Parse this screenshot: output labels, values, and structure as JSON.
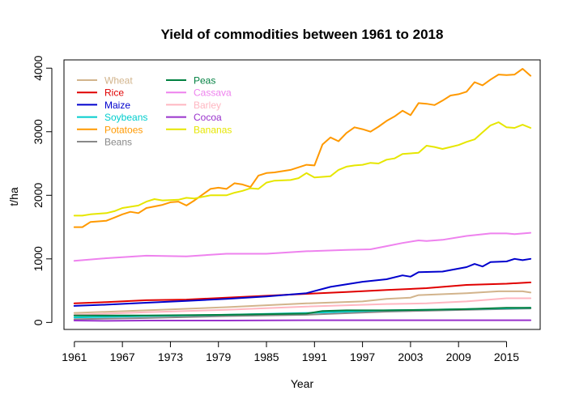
{
  "chart_data": {
    "type": "line",
    "title": "Yield of commodities between 1961 to 2018",
    "xlabel": "Year",
    "ylabel": "t/ha",
    "xlim": [
      1959.7,
      2019.2
    ],
    "ylim": [
      -110,
      4130
    ],
    "x_ticks": [
      1961,
      1967,
      1973,
      1979,
      1985,
      1991,
      1997,
      2003,
      2009,
      2015
    ],
    "y_ticks": [
      0,
      1000,
      2000,
      3000,
      4000
    ],
    "x_tick_labels": [
      "1961",
      "1967",
      "1973",
      "1979",
      "1985",
      "1991",
      "1997",
      "2003",
      "2009",
      "2015"
    ],
    "y_tick_labels": [
      "0",
      "1000",
      "2000",
      "3000",
      "4000"
    ],
    "legend_position": "top-left",
    "grid": false,
    "series": [
      {
        "name": "Wheat",
        "color": "#d2b48c",
        "points": [
          [
            1961,
            150
          ],
          [
            1970,
            190
          ],
          [
            1980,
            240
          ],
          [
            1990,
            300
          ],
          [
            1997,
            330
          ],
          [
            2000,
            370
          ],
          [
            2003,
            390
          ],
          [
            2004,
            430
          ],
          [
            2010,
            460
          ],
          [
            2014,
            490
          ],
          [
            2017,
            490
          ],
          [
            2018,
            470
          ]
        ]
      },
      {
        "name": "Rice",
        "color": "#e00000",
        "points": [
          [
            1961,
            300
          ],
          [
            1965,
            320
          ],
          [
            1970,
            350
          ],
          [
            1975,
            360
          ],
          [
            1980,
            390
          ],
          [
            1985,
            420
          ],
          [
            1990,
            450
          ],
          [
            1995,
            480
          ],
          [
            2000,
            510
          ],
          [
            2005,
            540
          ],
          [
            2010,
            590
          ],
          [
            2015,
            610
          ],
          [
            2018,
            630
          ]
        ]
      },
      {
        "name": "Maize",
        "color": "#0000cd",
        "points": [
          [
            1961,
            260
          ],
          [
            1965,
            280
          ],
          [
            1970,
            310
          ],
          [
            1975,
            340
          ],
          [
            1980,
            370
          ],
          [
            1985,
            410
          ],
          [
            1990,
            460
          ],
          [
            1993,
            560
          ],
          [
            1997,
            640
          ],
          [
            2000,
            680
          ],
          [
            2002,
            740
          ],
          [
            2003,
            720
          ],
          [
            2004,
            790
          ],
          [
            2007,
            800
          ],
          [
            2010,
            870
          ],
          [
            2011,
            920
          ],
          [
            2012,
            880
          ],
          [
            2013,
            950
          ],
          [
            2015,
            960
          ],
          [
            2016,
            1000
          ],
          [
            2017,
            980
          ],
          [
            2018,
            1000
          ]
        ]
      },
      {
        "name": "Soybeans",
        "color": "#00cdcd",
        "points": [
          [
            1961,
            80
          ],
          [
            1970,
            100
          ],
          [
            1980,
            120
          ],
          [
            1990,
            150
          ],
          [
            2000,
            190
          ],
          [
            2005,
            200
          ],
          [
            2010,
            210
          ],
          [
            2018,
            230
          ]
        ]
      },
      {
        "name": "Potatoes",
        "color": "#ff9900",
        "points": [
          [
            1961,
            1500
          ],
          [
            1962,
            1500
          ],
          [
            1963,
            1580
          ],
          [
            1965,
            1600
          ],
          [
            1966,
            1650
          ],
          [
            1967,
            1700
          ],
          [
            1968,
            1740
          ],
          [
            1969,
            1720
          ],
          [
            1970,
            1800
          ],
          [
            1972,
            1850
          ],
          [
            1973,
            1890
          ],
          [
            1974,
            1900
          ],
          [
            1975,
            1840
          ],
          [
            1976,
            1920
          ],
          [
            1978,
            2100
          ],
          [
            1979,
            2120
          ],
          [
            1980,
            2100
          ],
          [
            1981,
            2190
          ],
          [
            1982,
            2170
          ],
          [
            1983,
            2130
          ],
          [
            1984,
            2310
          ],
          [
            1985,
            2350
          ],
          [
            1986,
            2360
          ],
          [
            1988,
            2400
          ],
          [
            1990,
            2480
          ],
          [
            1991,
            2470
          ],
          [
            1992,
            2800
          ],
          [
            1993,
            2910
          ],
          [
            1994,
            2850
          ],
          [
            1995,
            2980
          ],
          [
            1996,
            3070
          ],
          [
            1997,
            3040
          ],
          [
            1998,
            3000
          ],
          [
            1999,
            3080
          ],
          [
            2000,
            3170
          ],
          [
            2001,
            3240
          ],
          [
            2002,
            3330
          ],
          [
            2003,
            3260
          ],
          [
            2004,
            3450
          ],
          [
            2005,
            3440
          ],
          [
            2006,
            3420
          ],
          [
            2007,
            3490
          ],
          [
            2008,
            3570
          ],
          [
            2009,
            3590
          ],
          [
            2010,
            3630
          ],
          [
            2011,
            3780
          ],
          [
            2012,
            3730
          ],
          [
            2013,
            3820
          ],
          [
            2014,
            3900
          ],
          [
            2015,
            3890
          ],
          [
            2016,
            3900
          ],
          [
            2017,
            3990
          ],
          [
            2018,
            3880
          ]
        ]
      },
      {
        "name": "Beans",
        "color": "#888888",
        "points": [
          [
            1961,
            50
          ],
          [
            1970,
            70
          ],
          [
            1980,
            100
          ],
          [
            1990,
            120
          ],
          [
            2000,
            170
          ],
          [
            2010,
            200
          ],
          [
            2018,
            220
          ]
        ]
      },
      {
        "name": "Peas",
        "color": "#008040",
        "points": [
          [
            1961,
            110
          ],
          [
            1970,
            110
          ],
          [
            1980,
            120
          ],
          [
            1990,
            140
          ],
          [
            1992,
            180
          ],
          [
            1995,
            190
          ],
          [
            2000,
            190
          ],
          [
            2005,
            200
          ],
          [
            2010,
            210
          ],
          [
            2015,
            230
          ],
          [
            2018,
            230
          ]
        ]
      },
      {
        "name": "Cassava",
        "color": "#ee82ee",
        "points": [
          [
            1961,
            970
          ],
          [
            1965,
            1010
          ],
          [
            1970,
            1050
          ],
          [
            1975,
            1040
          ],
          [
            1980,
            1080
          ],
          [
            1985,
            1080
          ],
          [
            1990,
            1120
          ],
          [
            1995,
            1140
          ],
          [
            1998,
            1150
          ],
          [
            2000,
            1200
          ],
          [
            2002,
            1250
          ],
          [
            2004,
            1290
          ],
          [
            2005,
            1280
          ],
          [
            2007,
            1300
          ],
          [
            2010,
            1360
          ],
          [
            2013,
            1400
          ],
          [
            2015,
            1400
          ],
          [
            2016,
            1390
          ],
          [
            2018,
            1410
          ]
        ]
      },
      {
        "name": "Barley",
        "color": "#ffb6c1",
        "points": [
          [
            1961,
            120
          ],
          [
            1970,
            160
          ],
          [
            1980,
            200
          ],
          [
            1990,
            250
          ],
          [
            2000,
            290
          ],
          [
            2005,
            300
          ],
          [
            2010,
            330
          ],
          [
            2015,
            380
          ],
          [
            2018,
            380
          ]
        ]
      },
      {
        "name": "Cocoa",
        "color": "#9932cc",
        "points": [
          [
            1961,
            30
          ],
          [
            1965,
            25
          ],
          [
            1970,
            30
          ],
          [
            1980,
            30
          ],
          [
            1990,
            35
          ],
          [
            2000,
            35
          ],
          [
            2010,
            35
          ],
          [
            2018,
            35
          ]
        ]
      },
      {
        "name": "Bananas",
        "color": "#e6e600",
        "points": [
          [
            1961,
            1680
          ],
          [
            1962,
            1680
          ],
          [
            1963,
            1700
          ],
          [
            1965,
            1720
          ],
          [
            1966,
            1750
          ],
          [
            1967,
            1800
          ],
          [
            1969,
            1840
          ],
          [
            1970,
            1900
          ],
          [
            1971,
            1940
          ],
          [
            1972,
            1920
          ],
          [
            1974,
            1930
          ],
          [
            1975,
            1960
          ],
          [
            1976,
            1950
          ],
          [
            1978,
            2000
          ],
          [
            1980,
            2000
          ],
          [
            1981,
            2040
          ],
          [
            1982,
            2070
          ],
          [
            1983,
            2110
          ],
          [
            1984,
            2100
          ],
          [
            1985,
            2200
          ],
          [
            1986,
            2230
          ],
          [
            1988,
            2240
          ],
          [
            1989,
            2270
          ],
          [
            1990,
            2350
          ],
          [
            1991,
            2280
          ],
          [
            1992,
            2290
          ],
          [
            1993,
            2300
          ],
          [
            1994,
            2400
          ],
          [
            1995,
            2450
          ],
          [
            1996,
            2470
          ],
          [
            1997,
            2480
          ],
          [
            1998,
            2510
          ],
          [
            1999,
            2500
          ],
          [
            2000,
            2560
          ],
          [
            2001,
            2580
          ],
          [
            2002,
            2650
          ],
          [
            2003,
            2660
          ],
          [
            2004,
            2670
          ],
          [
            2005,
            2780
          ],
          [
            2006,
            2760
          ],
          [
            2007,
            2730
          ],
          [
            2008,
            2760
          ],
          [
            2009,
            2790
          ],
          [
            2010,
            2840
          ],
          [
            2011,
            2880
          ],
          [
            2012,
            2990
          ],
          [
            2013,
            3100
          ],
          [
            2014,
            3150
          ],
          [
            2015,
            3070
          ],
          [
            2016,
            3060
          ],
          [
            2017,
            3110
          ],
          [
            2018,
            3060
          ]
        ]
      }
    ],
    "draw_order": [
      "Potatoes",
      "Bananas",
      "Cassava",
      "Rice",
      "Maize",
      "Wheat",
      "Barley",
      "Beans",
      "Soybeans",
      "Peas",
      "Cocoa"
    ],
    "legend_columns": [
      [
        "Wheat",
        "Rice",
        "Maize",
        "Soybeans",
        "Potatoes",
        "Beans"
      ],
      [
        "Peas",
        "Cassava",
        "Barley",
        "Cocoa",
        "Bananas"
      ]
    ]
  }
}
